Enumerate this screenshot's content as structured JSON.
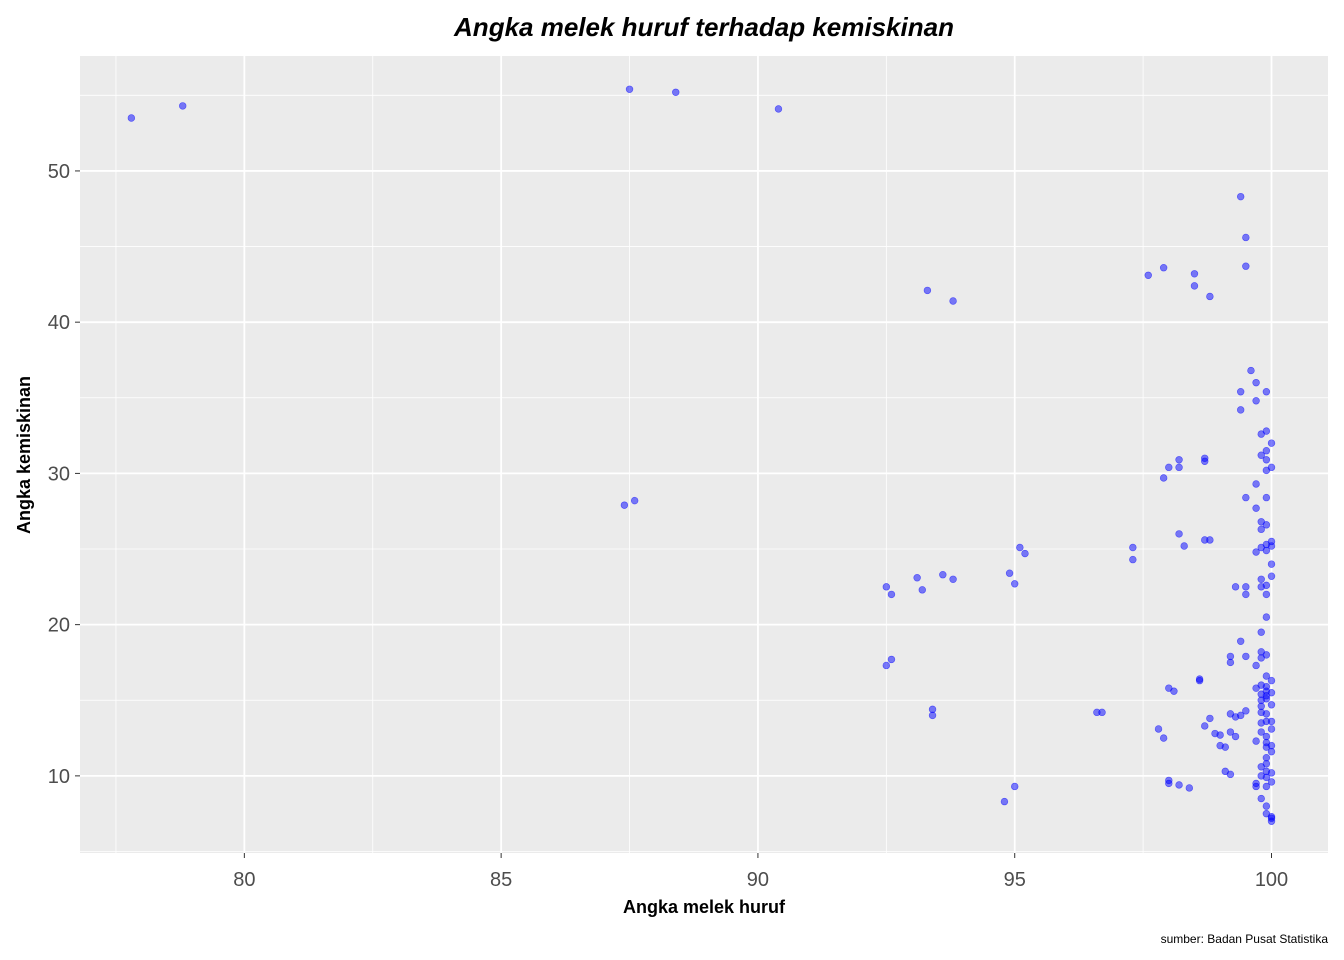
{
  "chart_data": {
    "type": "scatter",
    "title": "Angka melek huruf terhadap kemiskinan",
    "xlabel": "Angka melek huruf",
    "ylabel": "Angka kemiskinan",
    "caption": "sumber: Badan Pusat Statistika",
    "xlim": [
      76.8,
      101.1
    ],
    "ylim": [
      4.9,
      57.6
    ],
    "x_ticks": [
      80,
      85,
      90,
      95,
      100
    ],
    "y_ticks": [
      10,
      20,
      30,
      40,
      50
    ],
    "x_tick_labels": [
      "80",
      "85",
      "90",
      "95",
      "100"
    ],
    "y_tick_labels": [
      "10",
      "20",
      "30",
      "40",
      "50"
    ],
    "grid": true,
    "panel_background": "#ebebeb",
    "grid_color": "#ffffff",
    "point_color": "#0000ff",
    "point_opacity": 0.5,
    "points": [
      {
        "x": 77.8,
        "y": 53.5
      },
      {
        "x": 78.8,
        "y": 54.3
      },
      {
        "x": 87.5,
        "y": 55.4
      },
      {
        "x": 88.4,
        "y": 55.2
      },
      {
        "x": 90.4,
        "y": 54.1
      },
      {
        "x": 87.4,
        "y": 27.9
      },
      {
        "x": 87.6,
        "y": 28.2
      },
      {
        "x": 93.3,
        "y": 42.1
      },
      {
        "x": 93.8,
        "y": 41.4
      },
      {
        "x": 92.5,
        "y": 22.5
      },
      {
        "x": 92.6,
        "y": 22.0
      },
      {
        "x": 93.1,
        "y": 23.1
      },
      {
        "x": 93.2,
        "y": 22.3
      },
      {
        "x": 93.6,
        "y": 23.3
      },
      {
        "x": 93.8,
        "y": 23.0
      },
      {
        "x": 92.5,
        "y": 17.3
      },
      {
        "x": 92.6,
        "y": 17.7
      },
      {
        "x": 93.4,
        "y": 14.4
      },
      {
        "x": 93.4,
        "y": 14.0
      },
      {
        "x": 94.8,
        "y": 8.3
      },
      {
        "x": 95.0,
        "y": 9.3
      },
      {
        "x": 94.9,
        "y": 23.4
      },
      {
        "x": 95.0,
        "y": 22.7
      },
      {
        "x": 95.1,
        "y": 25.1
      },
      {
        "x": 95.2,
        "y": 24.7
      },
      {
        "x": 96.6,
        "y": 14.2
      },
      {
        "x": 96.7,
        "y": 14.2
      },
      {
        "x": 97.3,
        "y": 25.1
      },
      {
        "x": 97.3,
        "y": 24.3
      },
      {
        "x": 97.6,
        "y": 43.1
      },
      {
        "x": 97.9,
        "y": 43.6
      },
      {
        "x": 98.5,
        "y": 43.2
      },
      {
        "x": 98.5,
        "y": 42.4
      },
      {
        "x": 98.8,
        "y": 41.7
      },
      {
        "x": 99.4,
        "y": 48.3
      },
      {
        "x": 99.5,
        "y": 45.6
      },
      {
        "x": 99.5,
        "y": 43.7
      },
      {
        "x": 97.9,
        "y": 29.7
      },
      {
        "x": 98.0,
        "y": 30.4
      },
      {
        "x": 98.2,
        "y": 30.9
      },
      {
        "x": 98.2,
        "y": 30.4
      },
      {
        "x": 98.7,
        "y": 31.0
      },
      {
        "x": 98.7,
        "y": 30.8
      },
      {
        "x": 98.2,
        "y": 26.0
      },
      {
        "x": 98.3,
        "y": 25.2
      },
      {
        "x": 98.7,
        "y": 25.6
      },
      {
        "x": 98.8,
        "y": 25.6
      },
      {
        "x": 97.8,
        "y": 13.1
      },
      {
        "x": 97.9,
        "y": 12.5
      },
      {
        "x": 98.0,
        "y": 15.8
      },
      {
        "x": 98.1,
        "y": 15.6
      },
      {
        "x": 98.0,
        "y": 9.5
      },
      {
        "x": 98.0,
        "y": 9.7
      },
      {
        "x": 98.2,
        "y": 9.4
      },
      {
        "x": 98.4,
        "y": 9.2
      },
      {
        "x": 98.6,
        "y": 16.4
      },
      {
        "x": 98.6,
        "y": 16.3
      },
      {
        "x": 98.7,
        "y": 13.3
      },
      {
        "x": 98.8,
        "y": 13.8
      },
      {
        "x": 98.9,
        "y": 12.8
      },
      {
        "x": 99.0,
        "y": 12.7
      },
      {
        "x": 99.0,
        "y": 12.0
      },
      {
        "x": 99.1,
        "y": 11.9
      },
      {
        "x": 99.2,
        "y": 12.9
      },
      {
        "x": 99.3,
        "y": 12.6
      },
      {
        "x": 99.2,
        "y": 14.1
      },
      {
        "x": 99.3,
        "y": 13.9
      },
      {
        "x": 99.4,
        "y": 14.0
      },
      {
        "x": 99.5,
        "y": 14.3
      },
      {
        "x": 99.1,
        "y": 10.3
      },
      {
        "x": 99.2,
        "y": 10.1
      },
      {
        "x": 99.2,
        "y": 17.9
      },
      {
        "x": 99.2,
        "y": 17.5
      },
      {
        "x": 99.4,
        "y": 18.9
      },
      {
        "x": 99.5,
        "y": 17.9
      },
      {
        "x": 99.3,
        "y": 22.5
      },
      {
        "x": 99.5,
        "y": 22.5
      },
      {
        "x": 99.5,
        "y": 22.0
      },
      {
        "x": 99.5,
        "y": 28.4
      },
      {
        "x": 99.7,
        "y": 27.7
      },
      {
        "x": 99.4,
        "y": 35.4
      },
      {
        "x": 99.4,
        "y": 34.2
      },
      {
        "x": 99.6,
        "y": 36.8
      },
      {
        "x": 99.7,
        "y": 36.0
      },
      {
        "x": 99.7,
        "y": 34.8
      },
      {
        "x": 99.9,
        "y": 35.4
      },
      {
        "x": 99.7,
        "y": 17.3
      },
      {
        "x": 99.7,
        "y": 15.8
      },
      {
        "x": 99.7,
        "y": 9.3
      },
      {
        "x": 99.7,
        "y": 9.5
      },
      {
        "x": 99.7,
        "y": 12.3
      },
      {
        "x": 99.7,
        "y": 24.8
      },
      {
        "x": 99.7,
        "y": 29.3
      },
      {
        "x": 99.8,
        "y": 31.2
      },
      {
        "x": 99.8,
        "y": 32.6
      },
      {
        "x": 99.8,
        "y": 26.8
      },
      {
        "x": 99.8,
        "y": 26.3
      },
      {
        "x": 99.8,
        "y": 25.1
      },
      {
        "x": 99.8,
        "y": 23.0
      },
      {
        "x": 99.8,
        "y": 22.5
      },
      {
        "x": 99.8,
        "y": 19.5
      },
      {
        "x": 99.8,
        "y": 18.2
      },
      {
        "x": 99.8,
        "y": 17.8
      },
      {
        "x": 99.8,
        "y": 16.0
      },
      {
        "x": 99.8,
        "y": 15.4
      },
      {
        "x": 99.8,
        "y": 15.0
      },
      {
        "x": 99.8,
        "y": 14.6
      },
      {
        "x": 99.8,
        "y": 13.5
      },
      {
        "x": 99.8,
        "y": 12.9
      },
      {
        "x": 99.8,
        "y": 10.6
      },
      {
        "x": 99.8,
        "y": 10.0
      },
      {
        "x": 99.8,
        "y": 8.5
      },
      {
        "x": 99.9,
        "y": 32.8
      },
      {
        "x": 99.9,
        "y": 30.9
      },
      {
        "x": 99.9,
        "y": 30.2
      },
      {
        "x": 99.9,
        "y": 31.5
      },
      {
        "x": 99.9,
        "y": 28.4
      },
      {
        "x": 99.9,
        "y": 26.6
      },
      {
        "x": 99.9,
        "y": 25.3
      },
      {
        "x": 99.9,
        "y": 24.9
      },
      {
        "x": 99.9,
        "y": 22.6
      },
      {
        "x": 99.9,
        "y": 22.0
      },
      {
        "x": 99.9,
        "y": 20.5
      },
      {
        "x": 99.9,
        "y": 18.0
      },
      {
        "x": 99.9,
        "y": 16.6
      },
      {
        "x": 99.9,
        "y": 15.9
      },
      {
        "x": 99.9,
        "y": 15.3
      },
      {
        "x": 99.9,
        "y": 15.1
      },
      {
        "x": 99.9,
        "y": 14.1
      },
      {
        "x": 99.9,
        "y": 13.6
      },
      {
        "x": 99.9,
        "y": 12.2
      },
      {
        "x": 99.9,
        "y": 11.9
      },
      {
        "x": 99.9,
        "y": 11.2
      },
      {
        "x": 99.9,
        "y": 10.8
      },
      {
        "x": 99.9,
        "y": 10.3
      },
      {
        "x": 99.9,
        "y": 9.9
      },
      {
        "x": 99.9,
        "y": 9.3
      },
      {
        "x": 99.9,
        "y": 8.0
      },
      {
        "x": 99.9,
        "y": 7.5
      },
      {
        "x": 100.0,
        "y": 32.0
      },
      {
        "x": 100.0,
        "y": 30.4
      },
      {
        "x": 100.0,
        "y": 25.5
      },
      {
        "x": 100.0,
        "y": 25.2
      },
      {
        "x": 100.0,
        "y": 24.0
      },
      {
        "x": 100.0,
        "y": 23.2
      },
      {
        "x": 100.0,
        "y": 16.3
      },
      {
        "x": 100.0,
        "y": 15.5
      },
      {
        "x": 100.0,
        "y": 14.7
      },
      {
        "x": 100.0,
        "y": 13.6
      },
      {
        "x": 100.0,
        "y": 13.1
      },
      {
        "x": 100.0,
        "y": 12.0
      },
      {
        "x": 100.0,
        "y": 11.6
      },
      {
        "x": 100.0,
        "y": 10.2
      },
      {
        "x": 100.0,
        "y": 9.6
      },
      {
        "x": 100.0,
        "y": 7.3
      },
      {
        "x": 100.0,
        "y": 7.0
      },
      {
        "x": 100.0,
        "y": 7.2
      },
      {
        "x": 99.9,
        "y": 15.6
      },
      {
        "x": 99.8,
        "y": 14.2
      },
      {
        "x": 99.9,
        "y": 12.6
      }
    ]
  }
}
